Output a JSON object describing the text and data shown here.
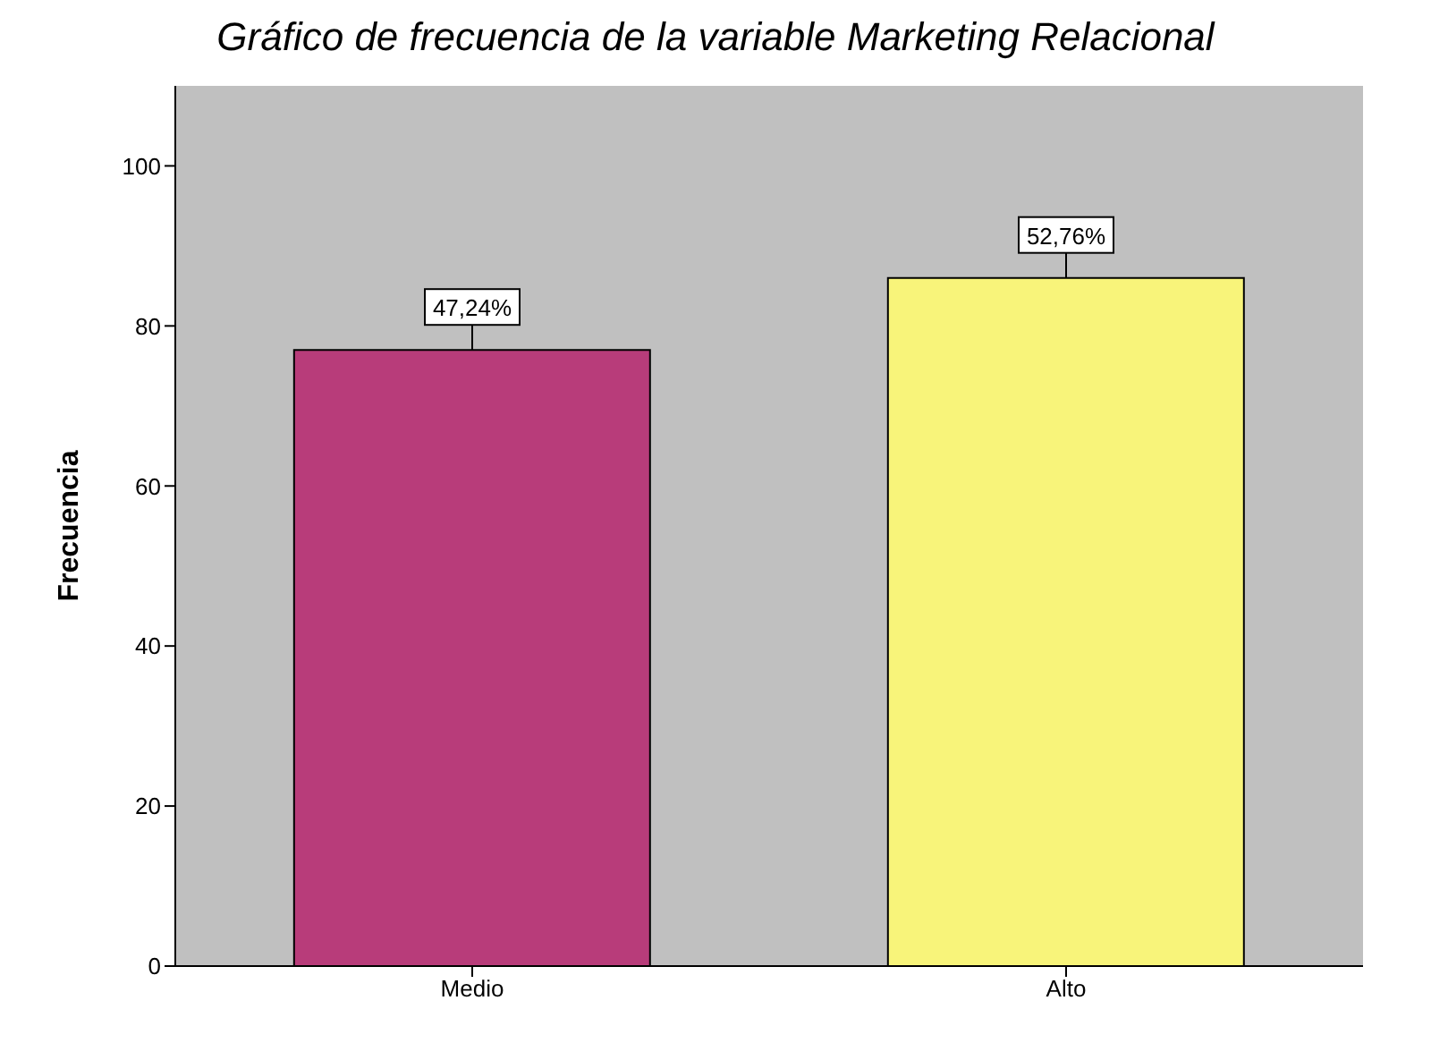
{
  "chart_data": {
    "type": "bar",
    "title": "Gráfico de frecuencia de la variable Marketing Relacional",
    "ylabel": "Frecuencia",
    "categories": [
      "Medio",
      "Alto"
    ],
    "values": [
      77,
      86
    ],
    "colors": [
      "#b83c7a",
      "#f8f47a"
    ],
    "annotations": [
      {
        "text": "47,24%",
        "x": "Medio",
        "y": 77
      },
      {
        "text": "52,76%",
        "x": "Alto",
        "y": 86
      }
    ],
    "ylim": [
      0,
      110
    ],
    "yticks": [
      0,
      20,
      40,
      60,
      80,
      100
    ]
  }
}
